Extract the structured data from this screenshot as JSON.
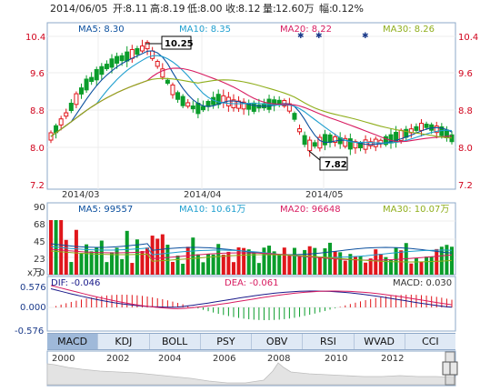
{
  "header": {
    "date": "2014/06/05",
    "open_label": "开:",
    "open": "8.11",
    "high_label": "高:",
    "high": "8.19",
    "low_label": "低:",
    "low": "8.00",
    "close_label": "收:",
    "close": "8.12",
    "volume_label": "量:",
    "volume": "12.60万",
    "change_label": "幅:",
    "change": "0.12%"
  },
  "price_panel": {
    "ma_legend": [
      {
        "label": "MA5: 8.30",
        "color": "#0a4f9e"
      },
      {
        "label": "MA10: 8.35",
        "color": "#1f9fcf"
      },
      {
        "label": "MA20: 8.22",
        "color": "#d81b60"
      },
      {
        "label": "MA30: 8.26",
        "color": "#8fae1b"
      }
    ],
    "y_ticks": [
      "10.4",
      "9.6",
      "8.8",
      "8.0",
      "7.2"
    ],
    "x_ticks": [
      "2014/03",
      "2014/04",
      "2014/05"
    ],
    "high_marker": "10.25",
    "low_marker": "7.82"
  },
  "volume_panel": {
    "ma_legend": [
      {
        "label": "MA5: 99557",
        "color": "#0a4f9e"
      },
      {
        "label": "MA10: 10.61万",
        "color": "#1f9fcf"
      },
      {
        "label": "MA20: 96648",
        "color": "#d81b60"
      },
      {
        "label": "MA30: 10.07万",
        "color": "#8fae1b"
      }
    ],
    "y_ticks": [
      "90",
      "68",
      "45",
      "23",
      "0"
    ],
    "unit": "x万"
  },
  "macd_panel": {
    "dif_label": "DIF: -0.046",
    "dea_label": "DEA: -0.061",
    "macd_label": "MACD: 0.030",
    "y_ticks": [
      "0.576",
      "0.000",
      "-0.576"
    ]
  },
  "tabs": [
    {
      "label": "MACD",
      "active": true
    },
    {
      "label": "KDJ",
      "active": false
    },
    {
      "label": "BOLL",
      "active": false
    },
    {
      "label": "PSY",
      "active": false
    },
    {
      "label": "OBV",
      "active": false
    },
    {
      "label": "RSI",
      "active": false
    },
    {
      "label": "WVAD",
      "active": false
    },
    {
      "label": "CCI",
      "active": false
    }
  ],
  "timeline": {
    "years": [
      "2000",
      "2002",
      "2004",
      "2006",
      "2008",
      "2010",
      "2012"
    ]
  },
  "colors": {
    "up": "#e0161b",
    "down": "#0a9d2b",
    "grid": "#e6e6e6",
    "axis_red": "#d0021b",
    "accent": "#8ea8c8"
  }
}
